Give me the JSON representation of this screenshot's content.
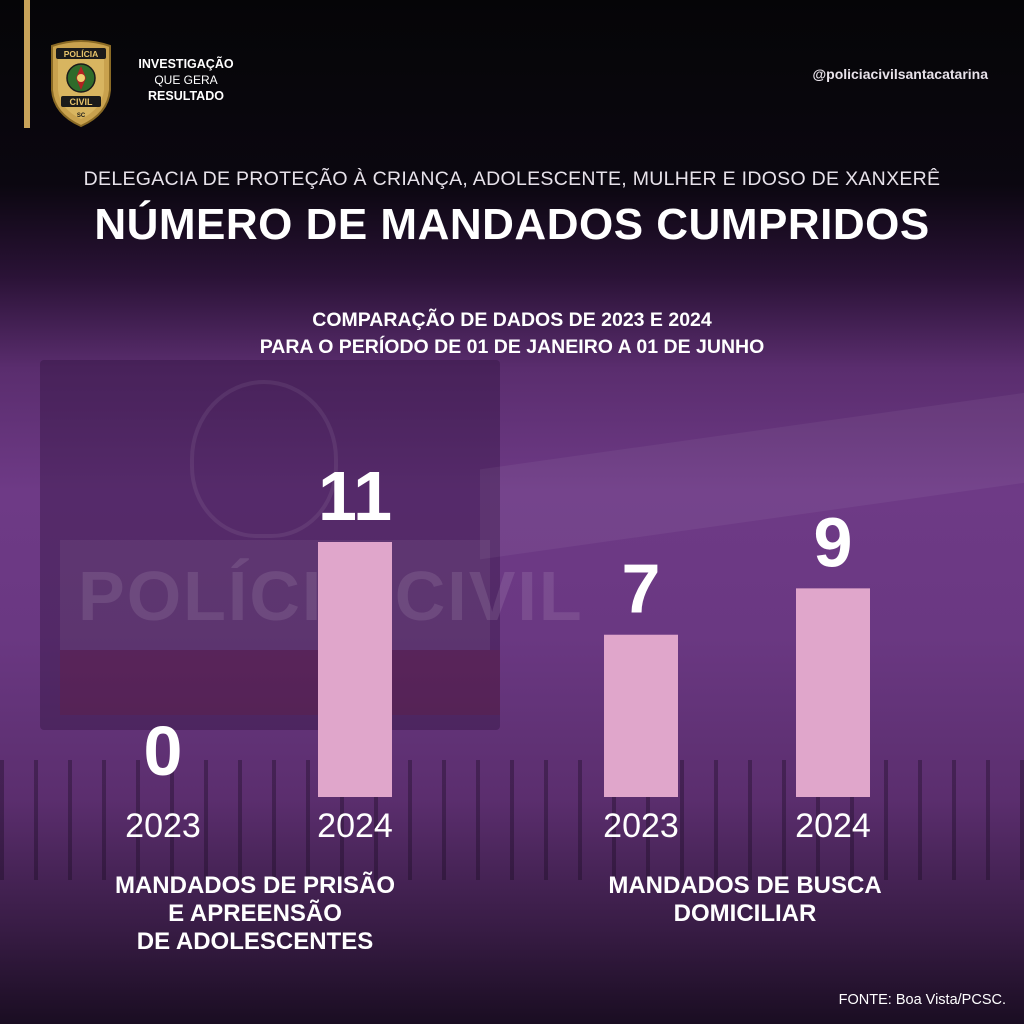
{
  "header": {
    "tagline_line1": "INVESTIGAÇÃO",
    "tagline_line2": "QUE GERA",
    "tagline_line3": "RESULTADO",
    "handle": "@policiacivilsantacatarina",
    "badge_text_top": "POLÍCIA",
    "badge_text_mid": "CIVIL",
    "badge_text_bottom": "SC"
  },
  "subtitle": "DELEGACIA DE PROTEÇÃO À CRIANÇA, ADOLESCENTE, MULHER E IDOSO DE XANXERÊ",
  "title": "NÚMERO DE MANDADOS CUMPRIDOS",
  "comparison_line1": "COMPARAÇÃO DE DADOS DE 2023 E 2024",
  "comparison_line2": "PARA O PERÍODO DE 01 DE JANEIRO A 01 DE JUNHO",
  "source": "FONTE: Boa Vista/PCSC.",
  "colors": {
    "bar": "#e0a6cb",
    "accent_gold": "#c8a35a"
  },
  "chart_data": {
    "type": "bar",
    "title": "NÚMERO DE MANDADOS CUMPRIDOS",
    "groups": [
      {
        "label_lines": [
          "MANDADOS DE PRISÃO",
          "E APREENSÃO",
          "DE ADOLESCENTES"
        ],
        "bars": [
          {
            "category": "2023",
            "value": 0
          },
          {
            "category": "2024",
            "value": 11
          }
        ]
      },
      {
        "label_lines": [
          "MANDADOS DE BUSCA",
          "DOMICILIAR"
        ],
        "bars": [
          {
            "category": "2023",
            "value": 7
          },
          {
            "category": "2024",
            "value": 9
          }
        ]
      }
    ],
    "ylim": [
      0,
      11
    ]
  }
}
